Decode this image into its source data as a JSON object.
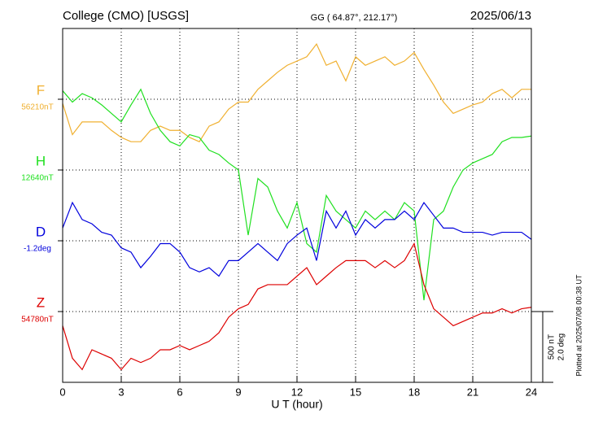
{
  "chart_data": {
    "type": "line",
    "title": "College (CMO)  [USGS]",
    "subtitle": "GG ( 64.87°, 212.17°)",
    "date": "2025/06/13",
    "x_label": "U T (hour)",
    "footnote": "Plotted at 2025/07/08 00:38 UT",
    "xlim": [
      0,
      24
    ],
    "xticks": [
      0,
      3,
      6,
      9,
      12,
      15,
      18,
      21,
      24
    ],
    "ylim": [
      0,
      2500
    ],
    "yticks": [
      500,
      1000,
      1500,
      2000
    ],
    "grid": true,
    "scale_bar": {
      "value": 500,
      "labels": [
        "500 nT",
        "2.0 deg"
      ]
    },
    "x": [
      0,
      0.5,
      1,
      1.5,
      2,
      2.5,
      3,
      3.5,
      4,
      4.5,
      5,
      5.5,
      6,
      6.5,
      7,
      7.5,
      8,
      8.5,
      9,
      9.5,
      10,
      10.5,
      11,
      11.5,
      12,
      12.5,
      13,
      13.5,
      14,
      14.5,
      15,
      15.5,
      16,
      16.5,
      17,
      17.5,
      18,
      18.5,
      19,
      19.5,
      20,
      20.5,
      21,
      21.5,
      22,
      22.5,
      23,
      23.5,
      24
    ],
    "series": [
      {
        "name": "F",
        "baseline_label": "56210nT",
        "color": "#f0b030",
        "values": [
          1970,
          1750,
          1840,
          1840,
          1840,
          1780,
          1730,
          1700,
          1700,
          1780,
          1810,
          1780,
          1780,
          1730,
          1700,
          1810,
          1840,
          1930,
          1980,
          1980,
          2070,
          2130,
          2190,
          2240,
          2270,
          2300,
          2390,
          2240,
          2270,
          2130,
          2300,
          2240,
          2270,
          2300,
          2240,
          2270,
          2330,
          2210,
          2100,
          1980,
          1900,
          1930,
          1960,
          1980,
          2040,
          2070,
          2010,
          2070,
          2070
        ]
      },
      {
        "name": "H",
        "baseline_label": "12640nT",
        "color": "#20e020",
        "values": [
          2060,
          1980,
          2040,
          2010,
          1960,
          1900,
          1840,
          1960,
          2070,
          1900,
          1780,
          1700,
          1670,
          1750,
          1730,
          1640,
          1610,
          1550,
          1500,
          1040,
          1440,
          1380,
          1210,
          1090,
          1270,
          980,
          920,
          1320,
          1210,
          1150,
          1090,
          1210,
          1150,
          1210,
          1150,
          1270,
          1210,
          580,
          1150,
          1210,
          1380,
          1500,
          1550,
          1580,
          1610,
          1700,
          1730,
          1730,
          1740
        ]
      },
      {
        "name": "D",
        "baseline_label": "-1.2deg",
        "color": "#0000dd",
        "values": [
          1090,
          1270,
          1150,
          1120,
          1060,
          1040,
          950,
          920,
          810,
          890,
          980,
          980,
          920,
          810,
          780,
          810,
          750,
          860,
          860,
          920,
          980,
          920,
          860,
          980,
          1040,
          1090,
          860,
          1210,
          1090,
          1210,
          1040,
          1150,
          1090,
          1150,
          1150,
          1210,
          1150,
          1270,
          1180,
          1090,
          1090,
          1060,
          1060,
          1060,
          1040,
          1060,
          1060,
          1060,
          1010
        ]
      },
      {
        "name": "Z",
        "baseline_label": "54780nT",
        "color": "#dd0000",
        "values": [
          400,
          170,
          90,
          230,
          200,
          170,
          90,
          170,
          140,
          170,
          230,
          230,
          260,
          230,
          260,
          290,
          350,
          460,
          520,
          550,
          660,
          690,
          690,
          690,
          750,
          810,
          690,
          750,
          810,
          860,
          860,
          860,
          810,
          860,
          810,
          860,
          980,
          690,
          520,
          460,
          400,
          430,
          460,
          490,
          490,
          520,
          490,
          520,
          530
        ]
      }
    ]
  }
}
